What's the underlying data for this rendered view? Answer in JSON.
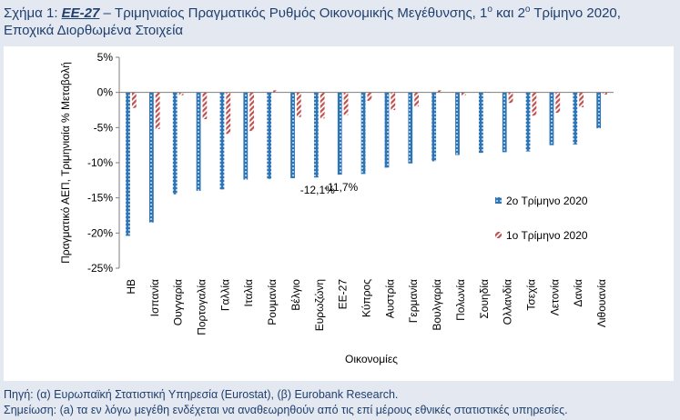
{
  "caption": {
    "prefix": "Σχήμα 1: ",
    "code": "EE-27",
    "text1": " – Τριμηνιαίος Πραγματικός Ρυθμός Οικονομικής Μεγέθυνσης, 1",
    "sup1": "ο",
    "text2": " και 2",
    "sup2": "ο",
    "text3": " Τρίμηνο 2020, Εποχικά Διορθωμένα Στοιχεία"
  },
  "chart_data": {
    "type": "bar",
    "ylabel": "Πραγματικό ΑΕΠ, Τριμηνιαία % Μεταβολή",
    "xlabel": "Οικονομίες",
    "ylim": [
      -25,
      5
    ],
    "yticks": [
      "5%",
      "0%",
      "-5%",
      "-10%",
      "-15%",
      "-20%",
      "-25%"
    ],
    "ytick_values": [
      5,
      0,
      -5,
      -10,
      -15,
      -20,
      -25
    ],
    "categories": [
      "ΗΒ",
      "Ισπανία",
      "Ουγγαρία",
      "Πορτογαλία",
      "Γαλλία",
      "Ιταλία",
      "Ρουμανία",
      "Βέλγιο",
      "Ευρωζώνη",
      "ΕΕ-27",
      "Κύπρος",
      "Αυστρία",
      "Γερμανία",
      "Βουλγαρία",
      "Πολωνία",
      "Σουηδία",
      "Ολλανδία",
      "Τσεχία",
      "Λετονία",
      "Δανία",
      "Λιθουανία"
    ],
    "series": [
      {
        "name": "2ο Τρίμηνο 2020",
        "color": "#2e75b6",
        "pattern": "dots",
        "values": [
          -20.4,
          -18.5,
          -14.5,
          -14.0,
          -13.8,
          -12.4,
          -12.3,
          -12.2,
          -12.1,
          -11.7,
          -11.6,
          -10.7,
          -10.1,
          -9.8,
          -8.9,
          -8.6,
          -8.5,
          -8.4,
          -7.5,
          -7.4,
          -5.1
        ]
      },
      {
        "name": "1ο Τρίμηνο 2020",
        "color": "#c0504d",
        "pattern": "stripes",
        "values": [
          -2.2,
          -5.2,
          -0.4,
          -3.8,
          -5.9,
          -5.5,
          0.3,
          -3.5,
          -3.7,
          -3.2,
          -1.2,
          -2.5,
          -2.0,
          0.3,
          -0.4,
          0.1,
          -1.5,
          -3.3,
          -2.9,
          -2.1,
          -0.3
        ]
      }
    ],
    "annotations": [
      {
        "category": "Ευρωζώνη",
        "text": "-12,1%"
      },
      {
        "category": "ΕΕ-27",
        "text": "-11,7%"
      }
    ],
    "legend_position": "right",
    "grid": false
  },
  "notes": {
    "source": "Πηγή: (α) Ευρωπαϊκή Στατιστική Υπηρεσία (Eurostat), (β) Eurobank Research.",
    "remark": "Σημείωση: (a) τα εν λόγω μεγέθη ενδέχεται να αναθεωρηθούν από τις επί μέρους εθνικές στατιστικές υπηρεσίες."
  }
}
